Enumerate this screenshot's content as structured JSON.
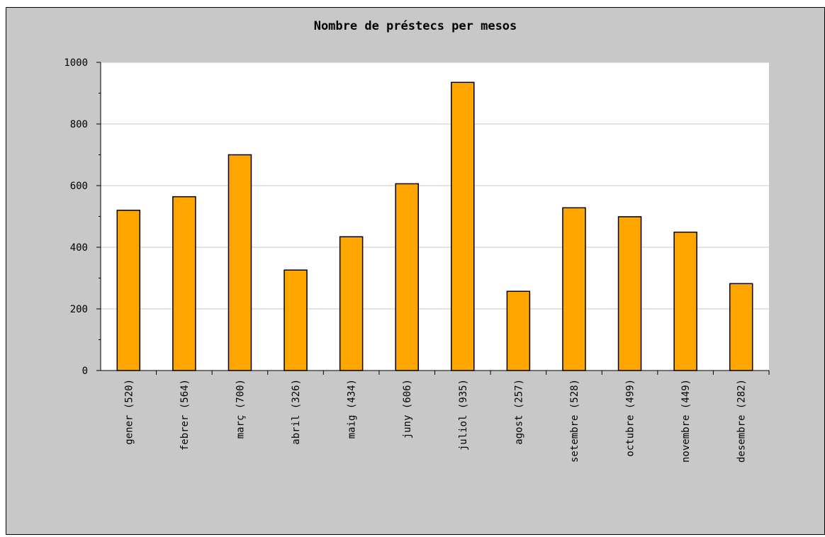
{
  "chart_data": {
    "type": "bar",
    "title": "Nombre de préstecs per mesos",
    "categories": [
      "gener (520)",
      "febrer (564)",
      "març (700)",
      "abril (326)",
      "maig (434)",
      "juny (606)",
      "juliol (935)",
      "agost (257)",
      "setembre (528)",
      "octubre (499)",
      "novembre (449)",
      "desembre (282)"
    ],
    "values": [
      520,
      564,
      700,
      326,
      434,
      606,
      935,
      257,
      528,
      499,
      449,
      282
    ],
    "ylim": [
      0,
      1000
    ],
    "yticks": [
      "0",
      "200",
      "400",
      "600",
      "800",
      "1000"
    ],
    "grid": true,
    "colors": {
      "bar": "#ffa500",
      "plot_bg": "#ffffff",
      "frame_bg": "#c8c8c8",
      "grid": "#c8c8c8"
    }
  }
}
